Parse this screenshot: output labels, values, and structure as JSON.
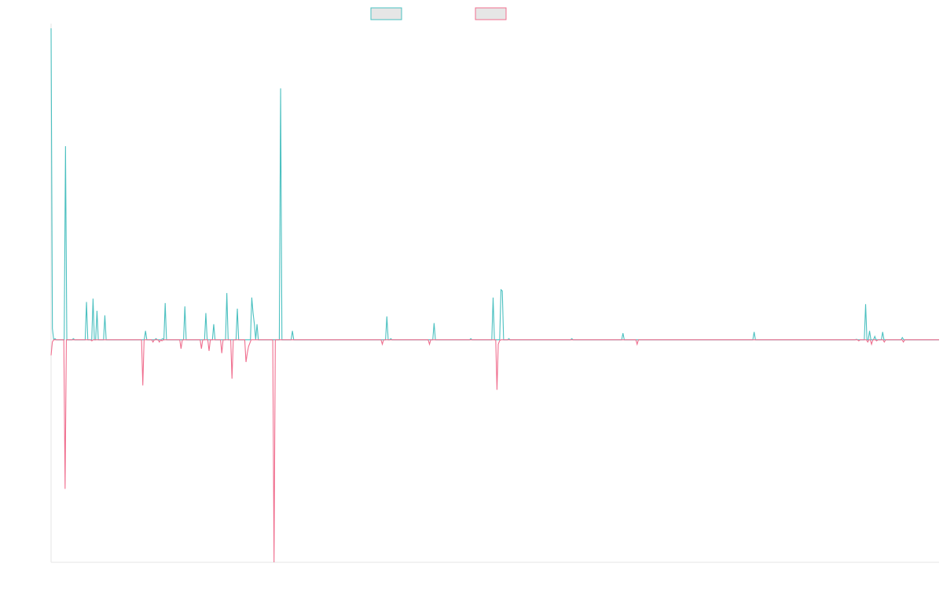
{
  "chart_data": {
    "type": "line",
    "title": "",
    "xlabel": "",
    "ylabel": "",
    "grid": false,
    "legend": "top-center",
    "ylim": [
      -1,
      1.4
    ],
    "series": [
      {
        "name": "",
        "color": "#4bc0c0",
        "fill": "#e6e6e6",
        "values": [
          1.4,
          0.05,
          0,
          0.005,
          0,
          0,
          0,
          0,
          0,
          0,
          0,
          0.87,
          0,
          0,
          0,
          0,
          0,
          0.005,
          0,
          0,
          0,
          0,
          0,
          0,
          0,
          0,
          0,
          0.17,
          0,
          0,
          0,
          0,
          0.185,
          0,
          0,
          0.13,
          0,
          0,
          0,
          0,
          0,
          0.11,
          0,
          0,
          0,
          0,
          0,
          0,
          0,
          0,
          0,
          0,
          0,
          0,
          0,
          0,
          0,
          0,
          0,
          0,
          0,
          0,
          0,
          0,
          0,
          0,
          0,
          0,
          0,
          0,
          0,
          0,
          0.04,
          0,
          0,
          0,
          0,
          0,
          0,
          0,
          0.005,
          0,
          0,
          0,
          0,
          0.005,
          0,
          0.165,
          0,
          0,
          0,
          0,
          0,
          0,
          0,
          0,
          0,
          0,
          0,
          0,
          0,
          0,
          0.15,
          0,
          0,
          0,
          0,
          0,
          0,
          0,
          0,
          0,
          0,
          0,
          0,
          0,
          0,
          0,
          0.12,
          0,
          0,
          0,
          0,
          0,
          0.07,
          0,
          0,
          0,
          0,
          0,
          0,
          0,
          0,
          0,
          0.21,
          0,
          0,
          0,
          0,
          0,
          0,
          0,
          0.14,
          0,
          0,
          0,
          0,
          0,
          0,
          0,
          0,
          0,
          0,
          0.19,
          0.12,
          0.07,
          0,
          0.07,
          0,
          0,
          0,
          0,
          0,
          0,
          0,
          0,
          0,
          0,
          0,
          0,
          0,
          0,
          0,
          0,
          0,
          1.13,
          0,
          0,
          0,
          0,
          0,
          0,
          0,
          0,
          0.04,
          0,
          0,
          0,
          0,
          0,
          0,
          0,
          0,
          0,
          0,
          0,
          0,
          0,
          0,
          0,
          0,
          0,
          0,
          0,
          0,
          0,
          0,
          0,
          0,
          0,
          0,
          0,
          0,
          0,
          0,
          0,
          0,
          0,
          0,
          0,
          0,
          0,
          0,
          0,
          0,
          0,
          0,
          0,
          0,
          0,
          0,
          0,
          0,
          0,
          0,
          0,
          0,
          0,
          0,
          0,
          0,
          0,
          0,
          0,
          0,
          0,
          0,
          0,
          0,
          0,
          0,
          0,
          0,
          0,
          0,
          0,
          0.105,
          0,
          0,
          0.005,
          0,
          0,
          0,
          0,
          0,
          0,
          0,
          0,
          0,
          0,
          0,
          0,
          0,
          0,
          0,
          0,
          0,
          0,
          0,
          0,
          0,
          0,
          0,
          0,
          0,
          0,
          0,
          0,
          0,
          0,
          0,
          0,
          0.075,
          0,
          0,
          0,
          0,
          0,
          0,
          0,
          0,
          0,
          0,
          0,
          0,
          0,
          0,
          0,
          0,
          0,
          0,
          0,
          0,
          0,
          0,
          0,
          0,
          0,
          0,
          0,
          0.005,
          0,
          0,
          0,
          0,
          0,
          0,
          0,
          0,
          0,
          0,
          0,
          0,
          0,
          0,
          0,
          0,
          0.19,
          0,
          0,
          0,
          0,
          0,
          0.225,
          0.22,
          0,
          0,
          0,
          0,
          0.005,
          0,
          0,
          0,
          0,
          0,
          0,
          0,
          0,
          0,
          0,
          0,
          0,
          0,
          0,
          0,
          0,
          0,
          0,
          0,
          0,
          0,
          0,
          0,
          0,
          0,
          0,
          0,
          0,
          0,
          0,
          0,
          0,
          0,
          0,
          0,
          0,
          0,
          0,
          0,
          0,
          0,
          0,
          0,
          0,
          0,
          0,
          0,
          0.005,
          0,
          0,
          0,
          0,
          0,
          0,
          0,
          0,
          0,
          0,
          0,
          0,
          0,
          0,
          0,
          0,
          0,
          0,
          0,
          0,
          0,
          0,
          0,
          0,
          0,
          0,
          0,
          0,
          0,
          0,
          0,
          0,
          0,
          0,
          0,
          0,
          0,
          0,
          0.03,
          0,
          0,
          0,
          0,
          0,
          0,
          0,
          0,
          0,
          0,
          0,
          0,
          0,
          0,
          0,
          0,
          0,
          0,
          0,
          0,
          0,
          0,
          0,
          0,
          0,
          0,
          0,
          0,
          0,
          0,
          0,
          0,
          0,
          0,
          0,
          0,
          0,
          0,
          0,
          0,
          0,
          0,
          0,
          0,
          0,
          0,
          0,
          0,
          0,
          0,
          0,
          0,
          0,
          0,
          0,
          0,
          0,
          0,
          0,
          0,
          0,
          0,
          0,
          0,
          0,
          0,
          0,
          0,
          0,
          0,
          0,
          0,
          0,
          0,
          0,
          0,
          0,
          0,
          0,
          0,
          0,
          0,
          0,
          0,
          0,
          0,
          0,
          0,
          0,
          0,
          0,
          0,
          0,
          0,
          0,
          0,
          0,
          0,
          0,
          0.035,
          0,
          0,
          0,
          0,
          0,
          0,
          0,
          0,
          0,
          0,
          0,
          0,
          0,
          0,
          0,
          0,
          0,
          0,
          0,
          0,
          0,
          0,
          0,
          0,
          0,
          0,
          0,
          0,
          0,
          0,
          0,
          0,
          0,
          0,
          0,
          0,
          0,
          0,
          0,
          0,
          0,
          0,
          0,
          0,
          0,
          0,
          0,
          0,
          0,
          0,
          0,
          0,
          0,
          0,
          0,
          0,
          0,
          0,
          0,
          0,
          0,
          0,
          0,
          0,
          0,
          0,
          0,
          0,
          0,
          0,
          0,
          0,
          0,
          0,
          0,
          0,
          0,
          0.002,
          0,
          0,
          0,
          0,
          0,
          0,
          0.16,
          0,
          0,
          0.04,
          0,
          0,
          0,
          0.015,
          0,
          0,
          0,
          0,
          0,
          0.035,
          0,
          0,
          0,
          0,
          0,
          0,
          0,
          0,
          0,
          0,
          0,
          0,
          0,
          0,
          0.01,
          0,
          0,
          0,
          0,
          0,
          0,
          0,
          0,
          0,
          0,
          0,
          0,
          0,
          0,
          0,
          0,
          0,
          0,
          0,
          0,
          0,
          0,
          0,
          0,
          0,
          0,
          0,
          0
        ]
      },
      {
        "name": "",
        "color": "#f06f8f",
        "fill": "#e6e6e6",
        "values": [
          -0.07,
          -0.01,
          0,
          0,
          0,
          0,
          0,
          0,
          0,
          0,
          0,
          -0.67,
          0,
          0,
          0,
          0,
          0,
          0,
          0,
          0,
          0,
          0,
          0,
          0,
          0,
          0,
          0,
          0,
          0,
          0,
          0,
          0,
          -0.005,
          0,
          0,
          0,
          0,
          0,
          0,
          0,
          0,
          0,
          0,
          0,
          0,
          0,
          0,
          0,
          0,
          0,
          0,
          0,
          0,
          0,
          0,
          0,
          0,
          0,
          0,
          0,
          0,
          0,
          0,
          0,
          0,
          0,
          0,
          0,
          0,
          0,
          0,
          0,
          -0.205,
          0,
          0,
          0,
          0,
          0,
          0,
          0,
          -0.01,
          0,
          0,
          0,
          0,
          -0.01,
          0,
          -0.005,
          0,
          0,
          0,
          0,
          0,
          0,
          0,
          0,
          0,
          0,
          0,
          0,
          0,
          0,
          -0.04,
          0,
          0,
          0,
          0,
          0,
          0,
          0,
          0,
          0,
          0,
          0,
          0,
          0,
          0,
          0,
          -0.04,
          0,
          0,
          0,
          0,
          0,
          -0.05,
          0,
          0,
          0,
          0,
          0,
          0,
          0,
          0,
          0,
          -0.06,
          0,
          0,
          0,
          0,
          0,
          0,
          0,
          -0.175,
          0,
          0,
          0,
          0,
          0,
          0,
          0,
          0,
          0,
          0,
          -0.1,
          -0.06,
          -0.03,
          -0.015,
          0,
          0,
          0,
          0,
          0,
          0,
          0,
          0,
          0,
          0,
          0,
          0,
          0,
          0,
          0,
          0,
          0,
          0,
          -1,
          0,
          0,
          0,
          0,
          0,
          0,
          0,
          0,
          0,
          0,
          0,
          0,
          0,
          0,
          0,
          0,
          0,
          0,
          0,
          0,
          0,
          0,
          0,
          0,
          0,
          0,
          0,
          0,
          0,
          0,
          0,
          0,
          0,
          0,
          0,
          0,
          0,
          0,
          0,
          0,
          0,
          0,
          0,
          0,
          0,
          0,
          0,
          0,
          0,
          0,
          0,
          0,
          0,
          0,
          0,
          0,
          0,
          0,
          0,
          0,
          0,
          0,
          0,
          0,
          0,
          0,
          0,
          0,
          0,
          0,
          0,
          0,
          0,
          0,
          0,
          0,
          0,
          0,
          0,
          0,
          0,
          0,
          0,
          0,
          -0.02,
          0,
          0,
          0,
          0,
          0,
          0,
          0,
          0,
          0,
          0,
          0,
          0,
          0,
          0,
          0,
          0,
          0,
          0,
          0,
          0,
          0,
          0,
          0,
          0,
          0,
          0,
          0,
          0,
          0,
          0,
          0,
          0,
          0,
          0,
          0,
          0,
          -0.02,
          0,
          0,
          0,
          0,
          0,
          0,
          0,
          0,
          0,
          0,
          0,
          0,
          0,
          0,
          0,
          0,
          0,
          0,
          0,
          0,
          0,
          0,
          0,
          0,
          0,
          0,
          0,
          0,
          0,
          0,
          0,
          0,
          0,
          0,
          0,
          0,
          0,
          0,
          0,
          0,
          0,
          0,
          0,
          0,
          0,
          0,
          0,
          0,
          0,
          0,
          0,
          0,
          -0.225,
          -0.02,
          -0.005,
          0,
          0,
          0,
          0,
          0,
          0,
          0,
          0,
          0,
          0,
          0,
          0,
          0,
          0,
          0,
          0,
          0,
          0,
          0,
          0,
          0,
          0,
          0,
          0,
          0,
          0,
          0,
          0,
          0,
          0,
          0,
          0,
          0,
          0,
          0,
          0,
          0,
          0,
          0,
          0,
          0,
          0,
          0,
          0,
          0,
          0,
          0,
          0,
          0,
          0,
          0,
          0,
          0,
          0,
          0,
          0,
          0,
          0,
          0,
          0,
          0,
          0,
          0,
          0,
          0,
          0,
          0,
          0,
          0,
          0,
          0,
          0,
          0,
          0,
          0,
          0,
          0,
          0,
          0,
          0,
          0,
          0,
          0,
          0,
          0,
          0,
          0,
          0,
          0,
          0,
          0,
          0,
          0,
          0,
          0,
          0,
          0,
          0,
          0,
          0,
          0,
          0,
          0,
          0,
          0,
          0,
          0,
          -0.02,
          0,
          0,
          0,
          0,
          0,
          0,
          0,
          0,
          0,
          0,
          0,
          0,
          0,
          0,
          0,
          0,
          0,
          0,
          0,
          0,
          0,
          0,
          0,
          0,
          0,
          0,
          0,
          0,
          0,
          0,
          0,
          0,
          0,
          0,
          0,
          0,
          0,
          0,
          0,
          0,
          0,
          0,
          0,
          0,
          0,
          0,
          0,
          0,
          0,
          0,
          0,
          0,
          0,
          0,
          0,
          0,
          0,
          0,
          0,
          0,
          0,
          0,
          0,
          0,
          0,
          0,
          0,
          0,
          0,
          0,
          0,
          0,
          0,
          0,
          0,
          0,
          0,
          0,
          0,
          0,
          0,
          0,
          0,
          0,
          0,
          0,
          0,
          0,
          0,
          0,
          0,
          0,
          0,
          0,
          0,
          0,
          0,
          0,
          0,
          0,
          0,
          0,
          0,
          0,
          0,
          0,
          0,
          0,
          0,
          0,
          0,
          0,
          0,
          0,
          0,
          0,
          0,
          0,
          0,
          0,
          0,
          0,
          0,
          0,
          0,
          0,
          0,
          0,
          0,
          0,
          0,
          0,
          0,
          0,
          0,
          0,
          0,
          0,
          0,
          0,
          0,
          0,
          0,
          0,
          0,
          0,
          0,
          0,
          0,
          0,
          0,
          0,
          0,
          0,
          0,
          0,
          0,
          0,
          0,
          0,
          0,
          0,
          0,
          0,
          0,
          0,
          0,
          0,
          0,
          0,
          0,
          0,
          0,
          -0.005,
          0,
          0,
          0,
          0,
          0,
          0,
          -0.01,
          0,
          0,
          -0.02,
          0,
          0,
          0,
          -0.005,
          0,
          0,
          0,
          0,
          0,
          -0.01,
          0,
          0,
          0,
          0,
          0,
          0,
          0,
          0,
          0,
          0,
          0,
          0,
          0,
          0,
          -0.01,
          0,
          0,
          0,
          0,
          0,
          0,
          0,
          0,
          0,
          0,
          0,
          0,
          0,
          0,
          0,
          0,
          0,
          0,
          0,
          0,
          0,
          0,
          0,
          0,
          0,
          0,
          0,
          0
        ]
      }
    ]
  }
}
